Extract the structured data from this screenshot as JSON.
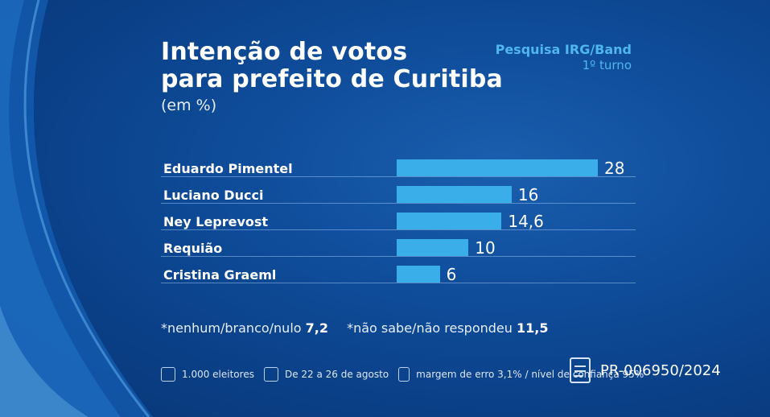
{
  "header": {
    "title_line1": "Intenção de votos",
    "title_line2": "para prefeito de Curitiba",
    "subtitle": "(em %)",
    "source_line1": "Pesquisa IRG/Band",
    "source_line2": "1º turno"
  },
  "chart_data": {
    "type": "bar",
    "orientation": "horizontal",
    "categories": [
      "Eduardo Pimentel",
      "Luciano Ducci",
      "Ney Leprevost",
      "Requião",
      "Cristina Graeml"
    ],
    "values": [
      28,
      16,
      14.6,
      10,
      6
    ],
    "value_labels": [
      "28",
      "16",
      "14,6",
      "10",
      "6"
    ],
    "bar_color": "#3aaee8"
  },
  "notes": {
    "n1_label": "*nenhum/branco/nulo",
    "n1_value": "7,2",
    "n2_label": "*não sabe/não respondeu",
    "n2_value": "11,5"
  },
  "footer": {
    "voters": "1.000 eleitores",
    "dates": "De 22 a 26 de agosto",
    "margin": "margem de erro 3,1% / nível de confiança 95%",
    "registration": "PR-006950/2024"
  },
  "colors": {
    "background": "#0f4d9b",
    "accent": "#4fb6ee"
  }
}
